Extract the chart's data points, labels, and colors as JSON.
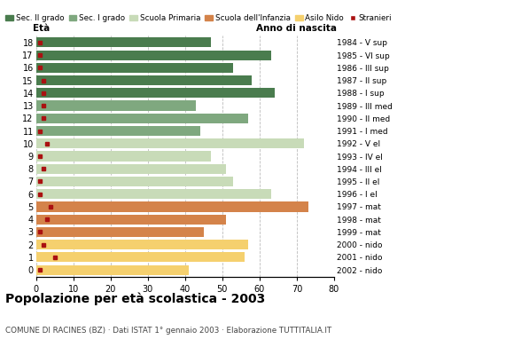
{
  "ages": [
    18,
    17,
    16,
    15,
    14,
    13,
    12,
    11,
    10,
    9,
    8,
    7,
    6,
    5,
    4,
    3,
    2,
    1,
    0
  ],
  "years": [
    "1984 - V sup",
    "1985 - VI sup",
    "1986 - III sup",
    "1987 - II sup",
    "1988 - I sup",
    "1989 - III med",
    "1990 - II med",
    "1991 - I med",
    "1992 - V el",
    "1993 - IV el",
    "1994 - III el",
    "1995 - II el",
    "1996 - I el",
    "1997 - mat",
    "1998 - mat",
    "1999 - mat",
    "2000 - nido",
    "2001 - nido",
    "2002 - nido"
  ],
  "values": [
    47,
    63,
    53,
    58,
    64,
    43,
    57,
    44,
    72,
    47,
    51,
    53,
    63,
    73,
    51,
    45,
    57,
    56,
    41
  ],
  "stranieri": [
    1,
    1,
    1,
    2,
    2,
    2,
    2,
    1,
    3,
    1,
    2,
    1,
    1,
    4,
    3,
    1,
    2,
    5,
    1
  ],
  "colors": {
    "sec2": "#4a7c4e",
    "sec1": "#7fa87f",
    "primaria": "#c8dbb8",
    "infanzia": "#d4834a",
    "nido": "#f5d06e",
    "stranieri": "#aa1111"
  },
  "school_levels": {
    "sec2": [
      14,
      15,
      16,
      17,
      18
    ],
    "sec1": [
      11,
      12,
      13
    ],
    "primaria": [
      6,
      7,
      8,
      9,
      10
    ],
    "infanzia": [
      3,
      4,
      5
    ],
    "nido": [
      0,
      1,
      2
    ]
  },
  "title": "Popolazione per età scolastica - 2003",
  "subtitle": "COMUNE DI RACINES (BZ) · Dati ISTAT 1° gennaio 2003 · Elaborazione TUTTITALIA.IT",
  "xlabel_left": "Età",
  "xlabel_right": "Anno di nascita",
  "xlim": [
    0,
    80
  ],
  "legend_labels": [
    "Sec. II grado",
    "Sec. I grado",
    "Scuola Primaria",
    "Scuola dell'Infanzia",
    "Asilo Nido",
    "Stranieri"
  ],
  "legend_colors": [
    "#4a7c4e",
    "#7fa87f",
    "#c8dbb8",
    "#d4834a",
    "#f5d06e",
    "#aa1111"
  ],
  "background_color": "#ffffff",
  "grid_color": "#aaaaaa"
}
